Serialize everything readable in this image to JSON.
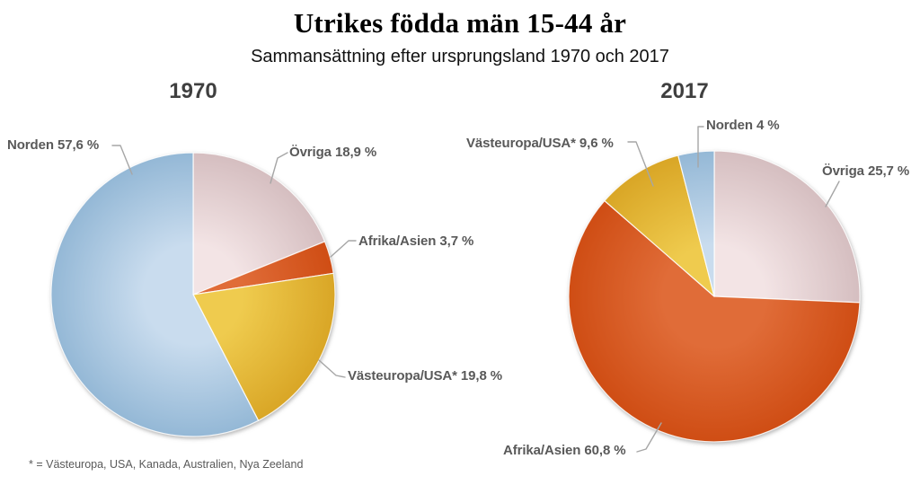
{
  "page": {
    "title": "Utrikes födda män 15-44 år",
    "subtitle": "Sammansättning efter ursprungsland 1970 och 2017",
    "footnote": "* = Västeuropa, USA, Kanada, Australien, Nya Zeeland"
  },
  "colors": {
    "label_text": "#595959",
    "heading_text": "#3f3f3f",
    "leader_line": "#a6a6a6",
    "norden_blue": "#94b8d6",
    "ovriga_pink": "#d5bec0",
    "afrika_orange": "#cf4d14",
    "vasteuropa_yellow": "#d9a626"
  },
  "chart_data": [
    {
      "type": "pie",
      "title": "1970",
      "start_angle_deg": 0,
      "direction": "clockwise",
      "slices": [
        {
          "name": "Övriga",
          "value": 18.9,
          "label": "Övriga 18,9 %",
          "color_center": "#f3e4e5",
          "color_edge": "#d5bec0"
        },
        {
          "name": "Afrika/Asien",
          "value": 3.7,
          "label": "Afrika/Asien 3,7 %",
          "color_center": "#e06c38",
          "color_edge": "#cf4d14"
        },
        {
          "name": "Västeuropa/USA*",
          "value": 19.8,
          "label": "Västeuropa/USA* 19,8 %",
          "color_center": "#efcb4e",
          "color_edge": "#d9a626"
        },
        {
          "name": "Norden",
          "value": 57.6,
          "label": "Norden 57,6 %",
          "color_center": "#c9dcee",
          "color_edge": "#94b8d6"
        }
      ]
    },
    {
      "type": "pie",
      "title": "2017",
      "start_angle_deg": 0,
      "direction": "clockwise",
      "slices": [
        {
          "name": "Övriga",
          "value": 25.7,
          "label": "Övriga 25,7 %",
          "color_center": "#f3e4e5",
          "color_edge": "#d5bec0"
        },
        {
          "name": "Afrika/Asien",
          "value": 60.8,
          "label": "Afrika/Asien 60,8 %",
          "color_center": "#e06c38",
          "color_edge": "#cf4d14"
        },
        {
          "name": "Västeuropa/USA*",
          "value": 9.6,
          "label": "Västeuropa/USA* 9,6 %",
          "color_center": "#efcb4e",
          "color_edge": "#d9a626"
        },
        {
          "name": "Norden",
          "value": 4,
          "label": "Norden 4 %",
          "color_center": "#c9dcee",
          "color_edge": "#94b8d6"
        }
      ]
    }
  ]
}
